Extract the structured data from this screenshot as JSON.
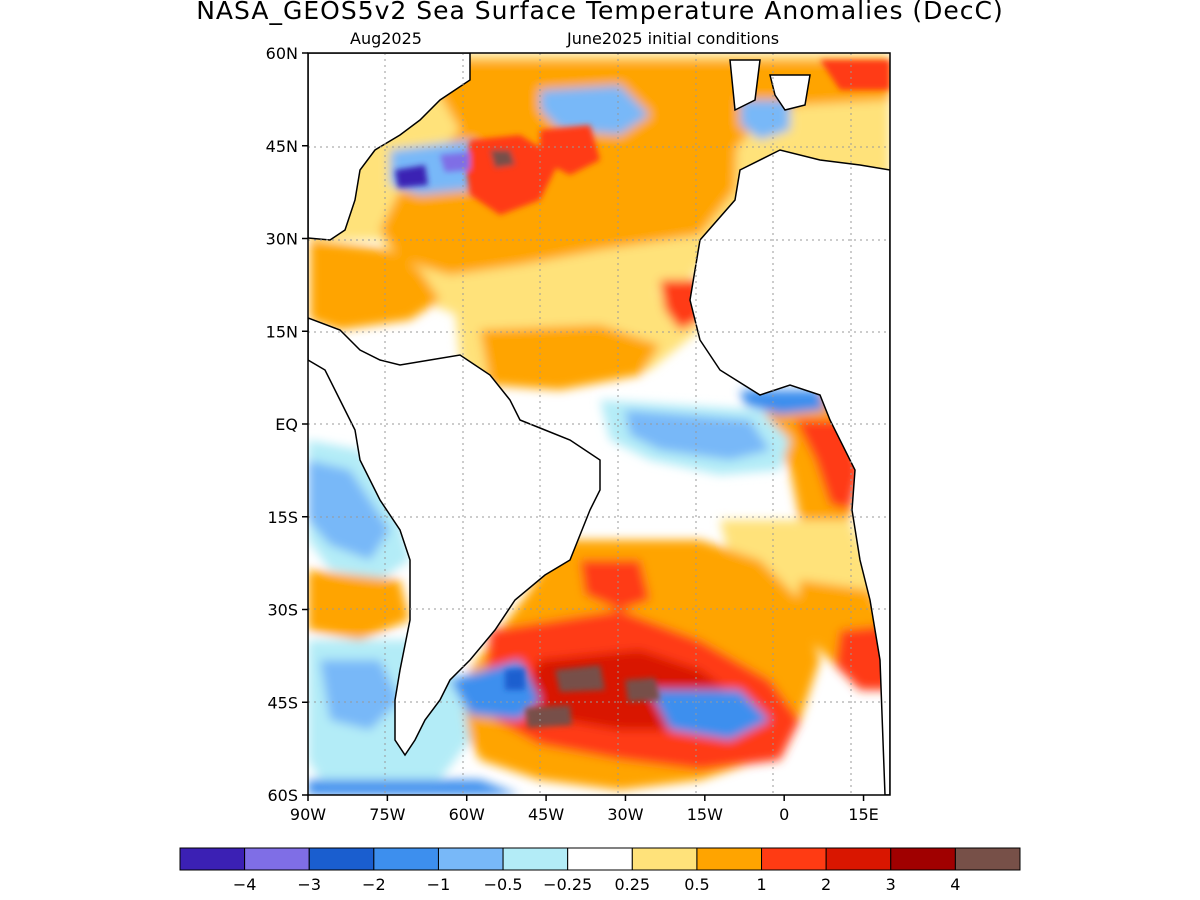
{
  "title": "NASA_GEOS5v2 Sea Surface Temperature Anomalies (DecC)",
  "subtitle_left": "Aug2025",
  "subtitle_right": "June2025 initial conditions",
  "lat_labels": [
    "60N",
    "45N",
    "30N",
    "15N",
    "EQ",
    "15S",
    "30S",
    "45S",
    "60S"
  ],
  "lon_labels": [
    "90W",
    "75W",
    "60W",
    "45W",
    "30W",
    "15W",
    "0",
    "15E"
  ],
  "colorbar": {
    "colors": [
      "#3b20b4",
      "#7f6ee6",
      "#1a5ecf",
      "#3d8fee",
      "#78b8f8",
      "#b3ecf7",
      "#ffffff",
      "#ffe27a",
      "#ffa400",
      "#ff3b13",
      "#d91600",
      "#a00000",
      "#775048"
    ],
    "labels": [
      "−4",
      "−3",
      "−2",
      "−1",
      "−0.5",
      "−0.25",
      "0.25",
      "0.5",
      "1",
      "2",
      "3",
      "4"
    ]
  },
  "map_data": {
    "region": "Atlantic Ocean",
    "lat_range": [
      "60S",
      "60N"
    ],
    "lon_range": [
      "90W",
      "20E"
    ],
    "warm_anomalies": [
      "North Atlantic 30N-50N",
      "Gulf of Guinea coast",
      "South Atlantic 35S-50S",
      "Caribbean"
    ],
    "cool_anomalies": [
      "Equatorial Atlantic",
      "Gulf of Maine",
      "Southeast Pacific coast"
    ]
  }
}
